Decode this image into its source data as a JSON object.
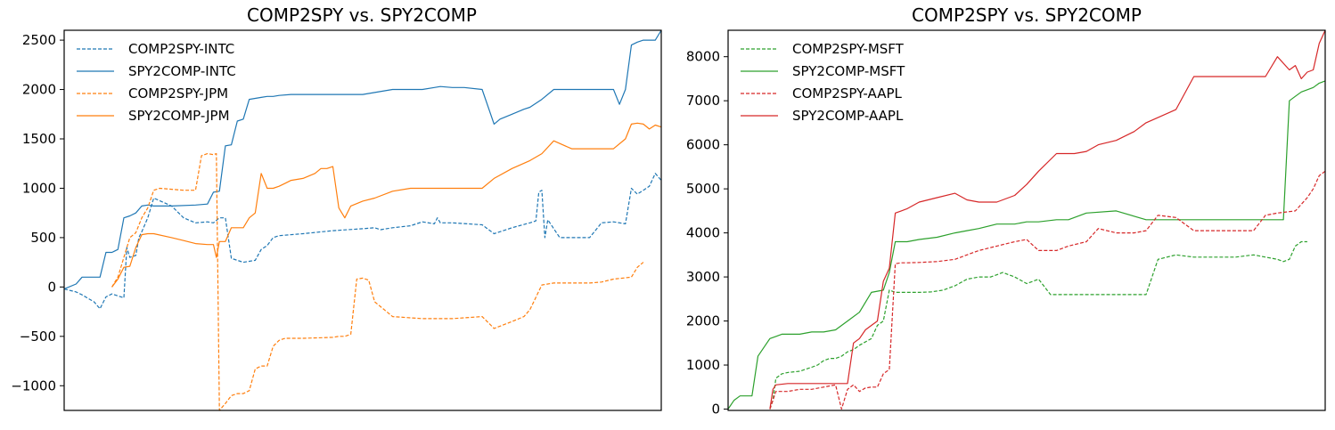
{
  "chart_data": [
    {
      "type": "line",
      "title": "COMP2SPY vs. SPY2COMP",
      "xlabel": "",
      "ylabel": "",
      "xlim": [
        0,
        100
      ],
      "ylim": [
        -1250,
        2600
      ],
      "yticks": [
        2500,
        2000,
        1500,
        1000,
        500,
        0,
        -500,
        -1000
      ],
      "xticks": [],
      "grid": false,
      "legend_position": "top-left",
      "series": [
        {
          "name": "COMP2SPY-INTC",
          "color": "#1f77b4",
          "dash": true,
          "x": [
            0,
            2,
            3,
            5,
            6,
            7,
            8,
            10,
            10.5,
            11,
            12,
            12.5,
            13,
            14,
            15,
            18,
            20,
            22,
            24,
            25,
            26,
            27,
            28,
            30,
            31,
            32,
            33,
            34,
            35,
            36,
            40,
            45,
            50,
            52,
            53,
            55,
            58,
            60,
            62,
            62.5,
            63,
            65,
            70,
            72,
            75,
            78,
            79,
            79.5,
            80,
            80.5,
            81,
            83,
            85,
            88,
            90,
            92,
            94,
            95,
            96,
            97,
            98,
            99,
            100
          ],
          "y": [
            -20,
            -50,
            -80,
            -150,
            -220,
            -100,
            -70,
            -110,
            400,
            300,
            320,
            500,
            560,
            700,
            900,
            820,
            700,
            650,
            660,
            650,
            700,
            700,
            290,
            250,
            260,
            270,
            380,
            420,
            500,
            520,
            540,
            570,
            590,
            600,
            580,
            600,
            620,
            660,
            640,
            700,
            650,
            650,
            630,
            540,
            600,
            650,
            670,
            960,
            980,
            500,
            680,
            500,
            500,
            500,
            650,
            660,
            640,
            1000,
            940,
            980,
            1020,
            1150,
            1080
          ]
        },
        {
          "name": "SPY2COMP-INTC",
          "color": "#1f77b4",
          "dash": false,
          "x": [
            0,
            2,
            3,
            5,
            6,
            7,
            8,
            9,
            10,
            11,
            12,
            13,
            14,
            15,
            18,
            22,
            24,
            25,
            26,
            27,
            28,
            29,
            30,
            31,
            32,
            33,
            34,
            35,
            36,
            38,
            40,
            45,
            50,
            55,
            60,
            62,
            63,
            65,
            67,
            70,
            72,
            73,
            75,
            77,
            78,
            80,
            82,
            85,
            88,
            90,
            92,
            93,
            94,
            95,
            96,
            97,
            98,
            99,
            100
          ],
          "y": [
            -20,
            30,
            100,
            100,
            100,
            350,
            350,
            380,
            700,
            720,
            750,
            820,
            830,
            820,
            820,
            830,
            840,
            960,
            970,
            1430,
            1440,
            1680,
            1700,
            1900,
            1910,
            1920,
            1930,
            1930,
            1940,
            1950,
            1950,
            1950,
            1950,
            2000,
            2000,
            2020,
            2030,
            2020,
            2020,
            2000,
            1650,
            1700,
            1750,
            1800,
            1820,
            1900,
            2000,
            2000,
            2000,
            2000,
            2000,
            1850,
            2000,
            2450,
            2480,
            2500,
            2500,
            2500,
            2600
          ]
        },
        {
          "name": "COMP2SPY-JPM",
          "color": "#ff7f0e",
          "dash": true,
          "x": [
            8,
            8.5,
            9,
            10,
            11,
            12,
            13,
            14,
            15,
            16,
            18,
            20,
            22,
            23,
            24,
            25,
            25.5,
            26,
            27,
            28,
            29,
            30,
            31,
            32,
            33,
            34,
            35,
            36,
            37,
            38,
            40,
            45,
            46,
            47,
            48,
            49,
            50,
            51,
            52,
            53,
            55,
            60,
            65,
            70,
            72,
            75,
            77,
            78,
            80,
            82,
            85,
            88,
            90,
            92,
            95,
            96,
            97
          ],
          "y": [
            0,
            50,
            100,
            300,
            500,
            550,
            700,
            800,
            980,
            1000,
            990,
            980,
            980,
            1330,
            1350,
            1340,
            1350,
            -1250,
            -1180,
            -1100,
            -1080,
            -1080,
            -1050,
            -830,
            -800,
            -800,
            -600,
            -540,
            -520,
            -520,
            -520,
            -510,
            -500,
            -500,
            -480,
            80,
            90,
            70,
            -150,
            -200,
            -300,
            -320,
            -320,
            -300,
            -420,
            -350,
            -300,
            -230,
            20,
            40,
            40,
            40,
            50,
            80,
            100,
            200,
            250
          ]
        },
        {
          "name": "SPY2COMP-JPM",
          "color": "#ff7f0e",
          "dash": false,
          "x": [
            8,
            9,
            10,
            11,
            12,
            13,
            14,
            15,
            18,
            20,
            22,
            24,
            25,
            25.5,
            26,
            27,
            28,
            30,
            31,
            32,
            33,
            34,
            35,
            36,
            37,
            38,
            40,
            42,
            43,
            44,
            45,
            46,
            47,
            48,
            50,
            52,
            55,
            58,
            60,
            62,
            65,
            68,
            70,
            72,
            75,
            78,
            80,
            82,
            85,
            88,
            90,
            92,
            94,
            95,
            96,
            97,
            98,
            99,
            100
          ],
          "y": [
            0,
            80,
            200,
            210,
            400,
            530,
            540,
            540,
            500,
            470,
            440,
            430,
            430,
            300,
            460,
            460,
            600,
            600,
            700,
            750,
            1150,
            1000,
            1000,
            1020,
            1050,
            1080,
            1100,
            1150,
            1200,
            1200,
            1220,
            800,
            700,
            820,
            870,
            900,
            970,
            1000,
            1000,
            1000,
            1000,
            1000,
            1000,
            1100,
            1200,
            1280,
            1350,
            1480,
            1400,
            1400,
            1400,
            1400,
            1500,
            1650,
            1660,
            1650,
            1600,
            1640,
            1620
          ]
        }
      ]
    },
    {
      "type": "line",
      "title": "COMP2SPY vs. SPY2COMP",
      "xlabel": "",
      "ylabel": "",
      "xlim": [
        0,
        100
      ],
      "ylim": [
        -30,
        8600
      ],
      "yticks": [
        8000,
        7000,
        6000,
        5000,
        4000,
        3000,
        2000,
        1000,
        0
      ],
      "xticks": [],
      "grid": false,
      "legend_position": "top-left",
      "series": [
        {
          "name": "COMP2SPY-MSFT",
          "color": "#2ca02c",
          "dash": true,
          "x": [
            7,
            7.5,
            8,
            9,
            10,
            12,
            14,
            15,
            16,
            17,
            18,
            19,
            20,
            21,
            22,
            24,
            25,
            26,
            27,
            28,
            30,
            32,
            34,
            36,
            38,
            40,
            42,
            44,
            46,
            48,
            50,
            52,
            54,
            56,
            58,
            60,
            65,
            68,
            70,
            72,
            75,
            78,
            80,
            82,
            85,
            88,
            90,
            92,
            93,
            94,
            95,
            96,
            97
          ],
          "y": [
            0,
            200,
            700,
            800,
            830,
            860,
            950,
            1000,
            1100,
            1150,
            1150,
            1200,
            1300,
            1350,
            1450,
            1600,
            1900,
            2000,
            2700,
            2650,
            2650,
            2650,
            2660,
            2700,
            2800,
            2950,
            3000,
            3000,
            3100,
            3000,
            2850,
            2950,
            2600,
            2600,
            2600,
            2600,
            2600,
            2600,
            2600,
            3400,
            3500,
            3450,
            3450,
            3450,
            3450,
            3500,
            3450,
            3400,
            3350,
            3400,
            3700,
            3800,
            3800
          ]
        },
        {
          "name": "SPY2COMP-MSFT",
          "color": "#2ca02c",
          "dash": false,
          "x": [
            0,
            1,
            2,
            3,
            4,
            5,
            6,
            7,
            8,
            9,
            10,
            12,
            14,
            15,
            16,
            18,
            20,
            22,
            24,
            26,
            27,
            28,
            30,
            32,
            35,
            38,
            40,
            42,
            45,
            48,
            50,
            52,
            55,
            57,
            60,
            65,
            70,
            75,
            78,
            80,
            85,
            88,
            90,
            91,
            92,
            93,
            94,
            95,
            96,
            97,
            98,
            99,
            100
          ],
          "y": [
            0,
            200,
            300,
            300,
            300,
            1200,
            1400,
            1600,
            1650,
            1700,
            1700,
            1700,
            1750,
            1750,
            1750,
            1800,
            2000,
            2200,
            2650,
            2700,
            3100,
            3800,
            3800,
            3850,
            3900,
            4000,
            4050,
            4100,
            4200,
            4200,
            4250,
            4250,
            4300,
            4300,
            4450,
            4500,
            4300,
            4300,
            4300,
            4300,
            4300,
            4300,
            4300,
            4300,
            4300,
            4300,
            7000,
            7100,
            7200,
            7250,
            7300,
            7400,
            7450
          ]
        },
        {
          "name": "COMP2SPY-AAPL",
          "color": "#d62728",
          "dash": true,
          "x": [
            7,
            7.5,
            8,
            9,
            10,
            12,
            14,
            16,
            18,
            19,
            20,
            21,
            22,
            23,
            24,
            25,
            26,
            27,
            28,
            29,
            30,
            32,
            35,
            38,
            40,
            42,
            45,
            48,
            50,
            52,
            55,
            57,
            60,
            62,
            65,
            68,
            70,
            72,
            75,
            78,
            80,
            82,
            85,
            88,
            90,
            92,
            95,
            97,
            98,
            99,
            100
          ],
          "y": [
            0,
            200,
            400,
            400,
            400,
            450,
            450,
            500,
            550,
            0,
            450,
            550,
            400,
            480,
            500,
            500,
            800,
            900,
            3300,
            3320,
            3320,
            3330,
            3350,
            3400,
            3500,
            3600,
            3700,
            3800,
            3850,
            3600,
            3600,
            3700,
            3800,
            4100,
            4000,
            4000,
            4050,
            4400,
            4350,
            4050,
            4050,
            4050,
            4050,
            4050,
            4400,
            4450,
            4500,
            4800,
            5000,
            5300,
            5400
          ]
        },
        {
          "name": "SPY2COMP-AAPL",
          "color": "#d62728",
          "dash": false,
          "x": [
            7,
            7.5,
            8,
            10,
            12,
            15,
            18,
            19,
            20,
            21,
            22,
            23,
            24,
            25,
            26,
            27,
            28,
            29,
            30,
            32,
            35,
            38,
            40,
            42,
            45,
            47,
            48,
            50,
            52,
            55,
            58,
            60,
            62,
            65,
            68,
            70,
            75,
            78,
            80,
            82,
            84,
            85,
            86,
            88,
            90,
            92,
            94,
            95,
            96,
            97,
            98,
            99,
            100
          ],
          "y": [
            0,
            450,
            550,
            580,
            580,
            580,
            580,
            580,
            580,
            1500,
            1600,
            1800,
            1900,
            2000,
            2900,
            3200,
            4450,
            4500,
            4550,
            4700,
            4800,
            4900,
            4750,
            4700,
            4700,
            4800,
            4850,
            5100,
            5400,
            5800,
            5800,
            5850,
            6000,
            6100,
            6300,
            6500,
            6800,
            7550,
            7550,
            7550,
            7550,
            7550,
            7550,
            7550,
            7550,
            8000,
            7700,
            7800,
            7500,
            7650,
            7700,
            8300,
            8600
          ]
        }
      ]
    }
  ]
}
